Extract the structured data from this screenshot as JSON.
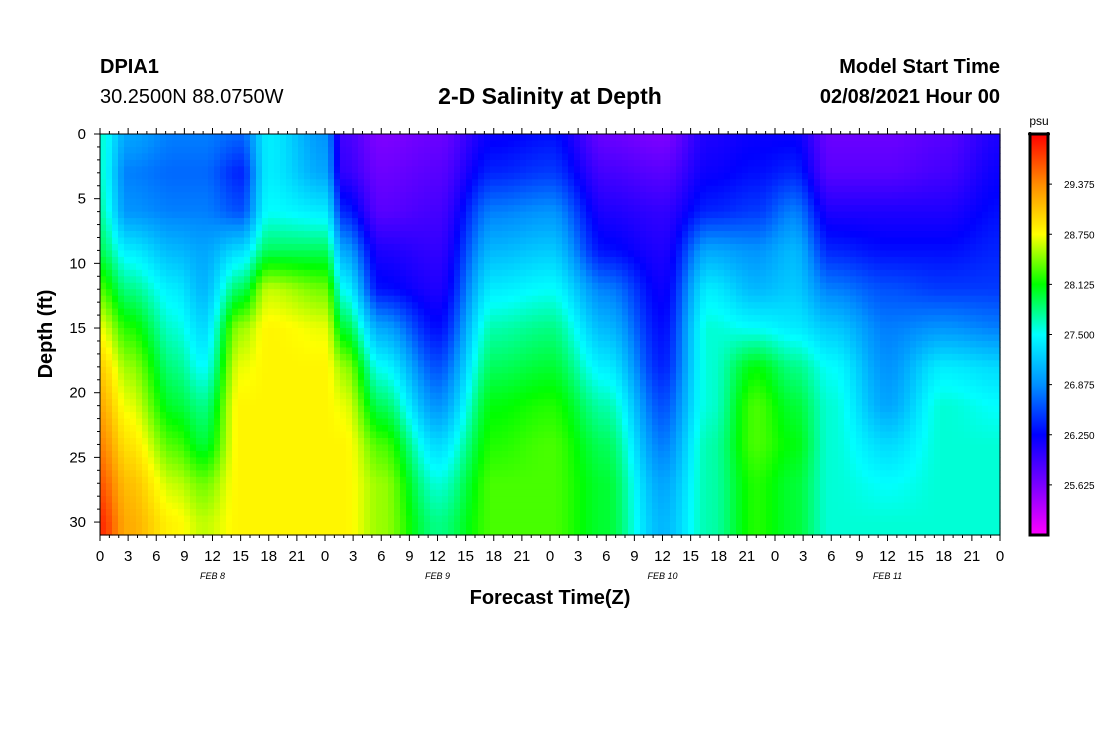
{
  "header": {
    "station_id": "DPIA1",
    "coords": "30.2500N 88.0750W",
    "title": "2-D Salinity at Depth",
    "start_label": "Model Start Time",
    "start_value": "02/08/2021 Hour 00"
  },
  "chart_data": {
    "type": "heatmap",
    "title": "2-D Salinity at Depth",
    "xlabel": "Forecast Time(Z)",
    "ylabel": "Depth (ft)",
    "x_tick_labels": [
      "0",
      "3",
      "6",
      "9",
      "12",
      "15",
      "18",
      "21",
      "0",
      "3",
      "6",
      "9",
      "12",
      "15",
      "18",
      "21",
      "0",
      "3",
      "6",
      "9",
      "12",
      "15",
      "18",
      "21",
      "0",
      "3",
      "6",
      "9",
      "12",
      "15",
      "18",
      "21",
      "0"
    ],
    "x_range_hours": [
      0,
      96
    ],
    "day_labels": [
      {
        "label": "FEB 8",
        "hour": 12
      },
      {
        "label": "FEB 9",
        "hour": 36
      },
      {
        "label": "FEB 10",
        "hour": 60
      },
      {
        "label": "FEB 11",
        "hour": 84
      }
    ],
    "y_ticks": [
      0,
      5,
      10,
      15,
      20,
      25,
      30
    ],
    "y_range": [
      0,
      31
    ],
    "y_inverted": true,
    "colorbar": {
      "unit": "psu",
      "range": [
        25.0,
        30.0
      ],
      "ticks": [
        "29.375",
        "28.750",
        "28.125",
        "27.500",
        "26.875",
        "26.250",
        "25.625"
      ],
      "tick_values": [
        29.375,
        28.75,
        28.125,
        27.5,
        26.875,
        26.25,
        25.625
      ],
      "colors": [
        "#ff00ff",
        "#7a00ff",
        "#0000ff",
        "#0090ff",
        "#00ffff",
        "#00ff00",
        "#ffff00",
        "#ff8c00",
        "#ff0000"
      ]
    },
    "salinity_profiles": {
      "depths_ft": [
        0,
        3,
        6,
        9,
        12,
        15,
        18,
        21,
        24,
        27,
        30,
        31
      ],
      "profiles": [
        {
          "hour": 0,
          "values": [
            27.6,
            27.6,
            27.7,
            27.9,
            28.3,
            28.7,
            29.0,
            29.2,
            29.4,
            29.6,
            29.8,
            29.8
          ]
        },
        {
          "hour": 3,
          "values": [
            27.0,
            26.8,
            26.9,
            27.4,
            27.8,
            28.2,
            28.5,
            28.7,
            28.9,
            29.1,
            29.2,
            29.2
          ]
        },
        {
          "hour": 8,
          "values": [
            26.8,
            26.7,
            26.8,
            27.1,
            27.4,
            27.6,
            27.8,
            28.0,
            28.3,
            28.6,
            28.8,
            28.8
          ]
        },
        {
          "hour": 11,
          "values": [
            26.8,
            26.7,
            26.8,
            27.0,
            27.1,
            27.3,
            27.5,
            27.8,
            28.0,
            28.4,
            28.6,
            28.6
          ]
        },
        {
          "hour": 15,
          "values": [
            26.7,
            26.4,
            26.6,
            27.3,
            27.9,
            28.5,
            28.7,
            28.8,
            28.8,
            28.8,
            28.8,
            28.8
          ]
        },
        {
          "hour": 18,
          "values": [
            27.4,
            27.4,
            27.5,
            27.9,
            28.6,
            28.8,
            28.8,
            28.8,
            28.8,
            28.8,
            28.8,
            28.8
          ]
        },
        {
          "hour": 24,
          "values": [
            26.9,
            27.0,
            27.4,
            27.9,
            28.4,
            28.7,
            28.8,
            28.8,
            28.8,
            28.8,
            28.8,
            28.8
          ]
        },
        {
          "hour": 26,
          "values": [
            25.9,
            26.0,
            26.4,
            27.0,
            27.5,
            28.0,
            28.5,
            28.7,
            28.8,
            28.8,
            28.8,
            28.8
          ]
        },
        {
          "hour": 30,
          "values": [
            25.6,
            25.7,
            25.8,
            26.1,
            26.3,
            27.0,
            27.5,
            27.9,
            28.3,
            28.5,
            28.5,
            28.5
          ]
        },
        {
          "hour": 36,
          "values": [
            25.7,
            25.8,
            25.9,
            26.0,
            26.1,
            26.3,
            26.6,
            26.9,
            27.3,
            27.6,
            27.8,
            27.8
          ]
        },
        {
          "hour": 42,
          "values": [
            26.2,
            26.4,
            26.8,
            27.1,
            27.4,
            27.7,
            27.9,
            28.1,
            28.2,
            28.3,
            28.3,
            28.3
          ]
        },
        {
          "hour": 48,
          "values": [
            26.3,
            26.5,
            26.9,
            27.2,
            27.5,
            27.8,
            28.0,
            28.2,
            28.3,
            28.3,
            28.3,
            28.3
          ]
        },
        {
          "hour": 54,
          "values": [
            25.7,
            25.9,
            26.1,
            26.3,
            26.8,
            27.1,
            27.4,
            27.7,
            27.9,
            28.0,
            28.0,
            28.0
          ]
        },
        {
          "hour": 60,
          "values": [
            25.6,
            25.8,
            26.0,
            26.1,
            26.2,
            26.3,
            26.4,
            26.6,
            26.8,
            27.0,
            27.1,
            27.1
          ]
        },
        {
          "hour": 65,
          "values": [
            26.1,
            26.2,
            26.4,
            27.0,
            27.4,
            27.6,
            27.6,
            27.6,
            27.7,
            27.7,
            27.7,
            27.7
          ]
        },
        {
          "hour": 70,
          "values": [
            26.2,
            26.3,
            26.5,
            26.9,
            27.1,
            27.5,
            28.1,
            28.3,
            28.3,
            28.2,
            28.2,
            28.2
          ]
        },
        {
          "hour": 74,
          "values": [
            26.2,
            26.4,
            26.8,
            27.1,
            27.2,
            27.4,
            27.8,
            28.0,
            28.1,
            28.0,
            28.0,
            28.0
          ]
        },
        {
          "hour": 78,
          "values": [
            25.7,
            25.8,
            26.1,
            26.4,
            26.8,
            27.2,
            27.5,
            27.6,
            27.6,
            27.6,
            27.6,
            27.6
          ]
        },
        {
          "hour": 84,
          "values": [
            25.7,
            25.8,
            26.1,
            26.3,
            26.6,
            26.8,
            26.9,
            27.0,
            27.3,
            27.5,
            27.6,
            27.6
          ]
        },
        {
          "hour": 90,
          "values": [
            25.8,
            25.9,
            26.1,
            26.3,
            26.5,
            26.9,
            27.4,
            27.6,
            27.6,
            27.6,
            27.6,
            27.6
          ]
        },
        {
          "hour": 96,
          "values": [
            26.1,
            26.2,
            26.3,
            26.4,
            26.5,
            26.8,
            27.3,
            27.5,
            27.6,
            27.6,
            27.6,
            27.6
          ]
        }
      ]
    }
  }
}
